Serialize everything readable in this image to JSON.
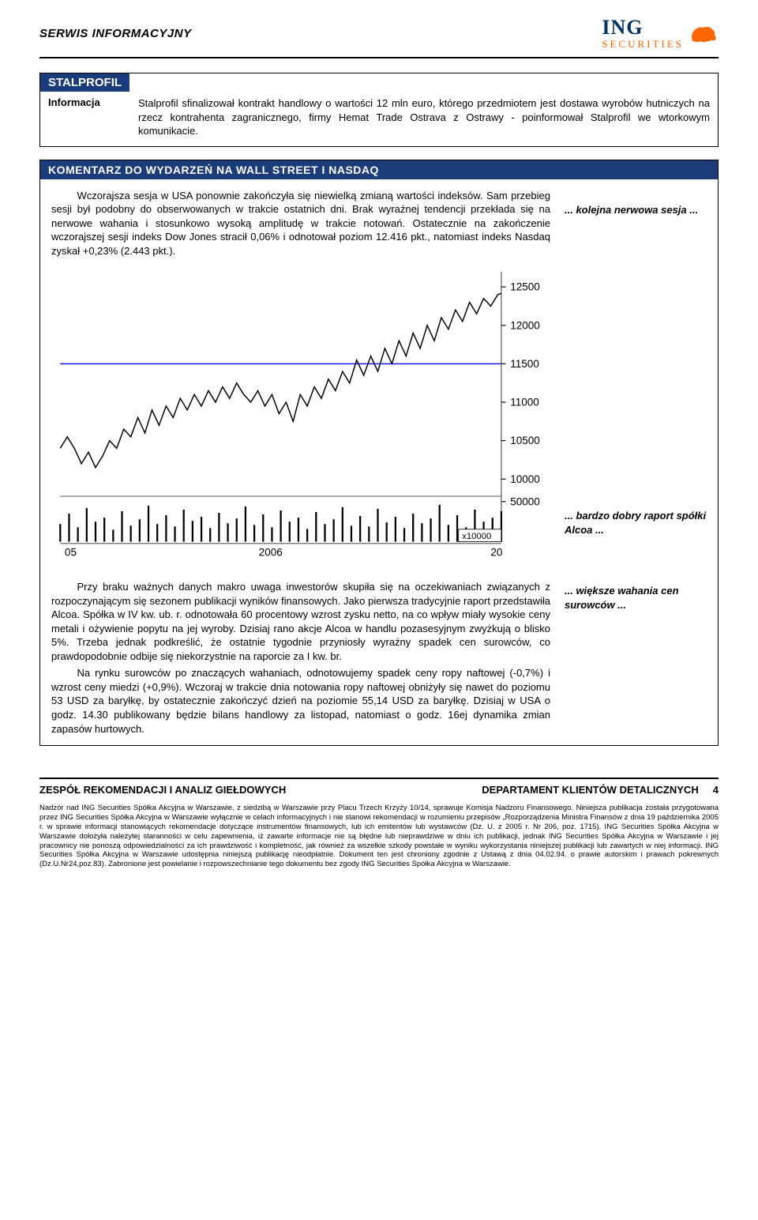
{
  "header": {
    "title": "SERWIS INFORMACYJNY",
    "logo_text": "ING",
    "logo_sub": "SECURITIES"
  },
  "stalprofil_box": {
    "title": "STALPROFIL",
    "label": "Informacja",
    "text": "Stalprofil sfinalizował kontrakt handlowy o wartości 12 mln euro, którego przedmiotem jest dostawa wyrobów hutniczych na rzecz kontrahenta zagranicznego, firmy Hemat Trade Ostrava z Ostrawy - poinformował Stalprofil we wtorkowym komunikacie."
  },
  "nasdaq_section": {
    "bar": "KOMENTARZ DO WYDARZEŃ NA WALL STREET I NASDAQ",
    "para1": "Wczorajsza sesja w USA ponownie zakończyła się niewielką zmianą wartości indeksów. Sam przebieg sesji był podobny do obserwowanych w trakcie ostatnich dni. Brak wyraźnej tendencji przekłada się na nerwowe wahania i stosunkowo wysoką amplitudę w trakcie notowań. Ostatecznie na zakończenie wczorajszej sesji indeks Dow Jones stracił 0,06% i odnotował poziom 12.416 pkt., natomiast indeks Nasdaq zyskał +0,23% (2.443 pkt.).",
    "note1": "... kolejna nerwowa sesja ...",
    "para2": "Przy braku ważnych danych makro uwaga inwestorów skupiła się na oczekiwaniach związanych z rozpoczynającym się sezonem publikacji wyników finansowych. Jako pierwsza tradycyjnie raport przedstawiła Alcoa. Spółka w IV kw. ub. r. odnotowała 60 procentowy wzrost zysku netto, na co wpływ miały wysokie ceny metali i ożywienie popytu na jej wyroby. Dzisiaj rano akcje Alcoa w handlu pozasesyjnym zwyżkują o blisko 5%. Trzeba jednak podkreślić, że ostatnie tygodnie przyniosły wyraźny spadek cen surowców, co prawdopodobnie odbije się niekorzystnie na raporcie za I kw. br.",
    "note2": "... bardzo dobry raport spółki Alcoa ...",
    "para3": "Na rynku surowców po znaczących wahaniach, odnotowujemy spadek ceny ropy naftowej (-0,7%) i wzrost ceny miedzi (+0,9%). Wczoraj w trakcie dnia notowania ropy naftowej obniżyły się nawet do poziomu 53 USD za baryłkę, by ostatecznie zakończyć dzień na poziomie 55,14 USD za baryłkę. Dzisiaj w USA o godz. 14.30 publikowany będzie bilans handlowy za listopad, natomiast o godz. 16ej dynamika zmian zapasów hurtowych.",
    "note3": "... większe wahania cen surowców ..."
  },
  "chart": {
    "type": "line-with-volume",
    "y_ticks": [
      10000,
      10500,
      11000,
      11500,
      12000,
      12500
    ],
    "vol_tick": 50000,
    "vol_scale_label": "x10000",
    "x_labels": [
      "05",
      "2006",
      "20"
    ],
    "ylim": [
      9800,
      12700
    ],
    "line_color": "#000000",
    "hline_color": "#0000ff",
    "hline_y": 11500,
    "tick_fontsize": 12,
    "background_color": "#ffffff",
    "price_path": [
      [
        0,
        10400
      ],
      [
        8,
        10550
      ],
      [
        16,
        10400
      ],
      [
        24,
        10200
      ],
      [
        32,
        10350
      ],
      [
        40,
        10150
      ],
      [
        48,
        10300
      ],
      [
        56,
        10500
      ],
      [
        64,
        10400
      ],
      [
        72,
        10650
      ],
      [
        80,
        10550
      ],
      [
        88,
        10800
      ],
      [
        96,
        10600
      ],
      [
        104,
        10900
      ],
      [
        112,
        10700
      ],
      [
        120,
        10950
      ],
      [
        128,
        10800
      ],
      [
        136,
        11050
      ],
      [
        144,
        10900
      ],
      [
        152,
        11100
      ],
      [
        160,
        10950
      ],
      [
        168,
        11150
      ],
      [
        176,
        11000
      ],
      [
        184,
        11200
      ],
      [
        192,
        11050
      ],
      [
        200,
        11250
      ],
      [
        208,
        11100
      ],
      [
        216,
        11000
      ],
      [
        224,
        11150
      ],
      [
        232,
        10950
      ],
      [
        240,
        11100
      ],
      [
        248,
        10850
      ],
      [
        256,
        11000
      ],
      [
        264,
        10750
      ],
      [
        272,
        11100
      ],
      [
        280,
        10950
      ],
      [
        288,
        11200
      ],
      [
        296,
        11050
      ],
      [
        304,
        11300
      ],
      [
        312,
        11150
      ],
      [
        320,
        11400
      ],
      [
        328,
        11250
      ],
      [
        336,
        11550
      ],
      [
        344,
        11350
      ],
      [
        352,
        11600
      ],
      [
        360,
        11400
      ],
      [
        368,
        11700
      ],
      [
        376,
        11500
      ],
      [
        384,
        11800
      ],
      [
        392,
        11600
      ],
      [
        400,
        11900
      ],
      [
        408,
        11700
      ],
      [
        416,
        12000
      ],
      [
        424,
        11800
      ],
      [
        432,
        12100
      ],
      [
        440,
        11950
      ],
      [
        448,
        12200
      ],
      [
        456,
        12050
      ],
      [
        464,
        12300
      ],
      [
        472,
        12150
      ],
      [
        480,
        12350
      ],
      [
        488,
        12250
      ],
      [
        496,
        12400
      ],
      [
        500,
        12416
      ]
    ],
    "volume_bars": [
      [
        0,
        22000
      ],
      [
        10,
        35000
      ],
      [
        20,
        18000
      ],
      [
        30,
        42000
      ],
      [
        40,
        25000
      ],
      [
        50,
        30000
      ],
      [
        60,
        15000
      ],
      [
        70,
        38000
      ],
      [
        80,
        20000
      ],
      [
        90,
        28000
      ],
      [
        100,
        45000
      ],
      [
        110,
        22000
      ],
      [
        120,
        33000
      ],
      [
        130,
        19000
      ],
      [
        140,
        40000
      ],
      [
        150,
        26000
      ],
      [
        160,
        31000
      ],
      [
        170,
        17000
      ],
      [
        180,
        36000
      ],
      [
        190,
        23000
      ],
      [
        200,
        29000
      ],
      [
        210,
        44000
      ],
      [
        220,
        21000
      ],
      [
        230,
        34000
      ],
      [
        240,
        18000
      ],
      [
        250,
        39000
      ],
      [
        260,
        25000
      ],
      [
        270,
        30000
      ],
      [
        280,
        16000
      ],
      [
        290,
        37000
      ],
      [
        300,
        22000
      ],
      [
        310,
        28000
      ],
      [
        320,
        43000
      ],
      [
        330,
        20000
      ],
      [
        340,
        32000
      ],
      [
        350,
        19000
      ],
      [
        360,
        41000
      ],
      [
        370,
        24000
      ],
      [
        380,
        31000
      ],
      [
        390,
        17000
      ],
      [
        400,
        35000
      ],
      [
        410,
        23000
      ],
      [
        420,
        29000
      ],
      [
        430,
        46000
      ],
      [
        440,
        21000
      ],
      [
        450,
        33000
      ],
      [
        460,
        18000
      ],
      [
        470,
        40000
      ],
      [
        480,
        25000
      ],
      [
        490,
        30000
      ],
      [
        500,
        38000
      ]
    ]
  },
  "footer": {
    "left": "ZESPÓŁ REKOMENDACJI I ANALIZ GIEŁDOWYCH",
    "right": "DEPARTAMENT KLIENTÓW DETALICZNYCH",
    "page": "4",
    "disclaimer": "Nadzór nad ING Securities Spółka Akcyjna w Warszawie, z siedzibą w Warszawie przy Placu Trzech Krzyży 10/14, sprawuje Komisja Nadzoru Finansowego. Niniejsza publikacja została przygotowana przez ING Securities Spółka Akcyjna w Warszawie wyłącznie w celach informacyjnych i nie stanowi rekomendacji w rozumieniu przepisów „Rozporządzenia Ministra Finansów z dnia 19 października 2005 r. w sprawie informacji stanowiących rekomendacje dotyczące instrumentów finansowych, lub ich emitentów lub wystawców (Dz. U. z 2005 r. Nr 206, poz. 1715). ING Securities Spółka Akcyjna w Warszawie dołożyła należytej staranności w celu zapewnienia, iż zawarte informacje nie są błędne lub nieprawdziwe w dniu ich publikacji, jednak ING Securities Spółka Akcyjna w Warszawie i jej pracownicy nie ponoszą odpowiedzialności za ich prawdziwość i kompletność, jak również za wszelkie szkody powstałe w wyniku wykorzystania niniejszej publikacji lub zawartych w niej informacji. ING Securities Spółka Akcyjna w Warszawie udostępnia niniejszą publikację nieodpłatnie. Dokument ten jest chroniony zgodnie z Ustawą z dnia 04.02.94. o prawie autorskim i prawach pokrewnych (Dz.U.Nr24,poz.83). Zabronione jest powielanie i rozpowszechnianie tego dokumentu bez zgody ING Securities Spółka Akcyjna w Warszawie."
  }
}
